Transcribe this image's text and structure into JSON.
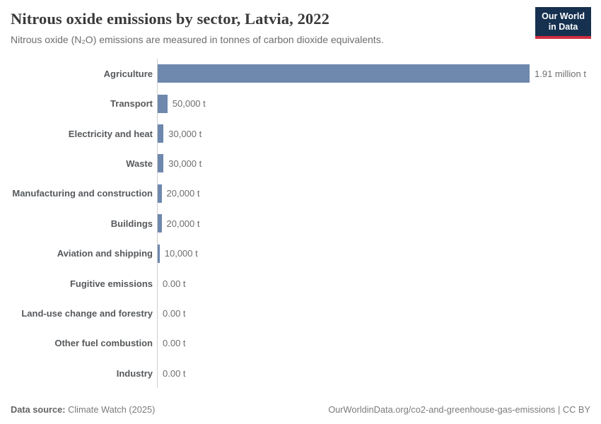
{
  "header": {
    "title": "Nitrous oxide emissions by sector, Latvia, 2022",
    "subtitle": "Nitrous oxide (N₂O) emissions are measured in tonnes of carbon dioxide equivalents.",
    "logo": {
      "line1": "Our World",
      "line2": "in Data"
    }
  },
  "chart_data": {
    "type": "bar",
    "orientation": "horizontal",
    "title": "Nitrous oxide emissions by sector, Latvia, 2022",
    "subtitle": "Nitrous oxide (N₂O) emissions are measured in tonnes of carbon dioxide equivalents.",
    "unit": "t",
    "xlim": [
      0,
      1910000
    ],
    "grid": false,
    "categories": [
      "Agriculture",
      "Transport",
      "Electricity and heat",
      "Waste",
      "Manufacturing and construction",
      "Buildings",
      "Aviation and shipping",
      "Fugitive emissions",
      "Land-use change and forestry",
      "Other fuel combustion",
      "Industry"
    ],
    "values": [
      1910000,
      50000,
      30000,
      30000,
      20000,
      20000,
      10000,
      0,
      0,
      0,
      0
    ],
    "value_labels": [
      "1.91 million t",
      "50,000 t",
      "30,000 t",
      "30,000 t",
      "20,000 t",
      "20,000 t",
      "10,000 t",
      "0.00 t",
      "0.00 t",
      "0.00 t",
      "0.00 t"
    ]
  },
  "footer": {
    "source_label": "Data source:",
    "source_value": "Climate Watch (2025)",
    "credit": "OurWorldinData.org/co2-and-greenhouse-gas-emissions | CC BY"
  },
  "colors": {
    "bar": "#6e88ae",
    "axis": "#cfcfcf",
    "logo_background": "#16304f",
    "logo_accent": "#cf2e3f"
  }
}
